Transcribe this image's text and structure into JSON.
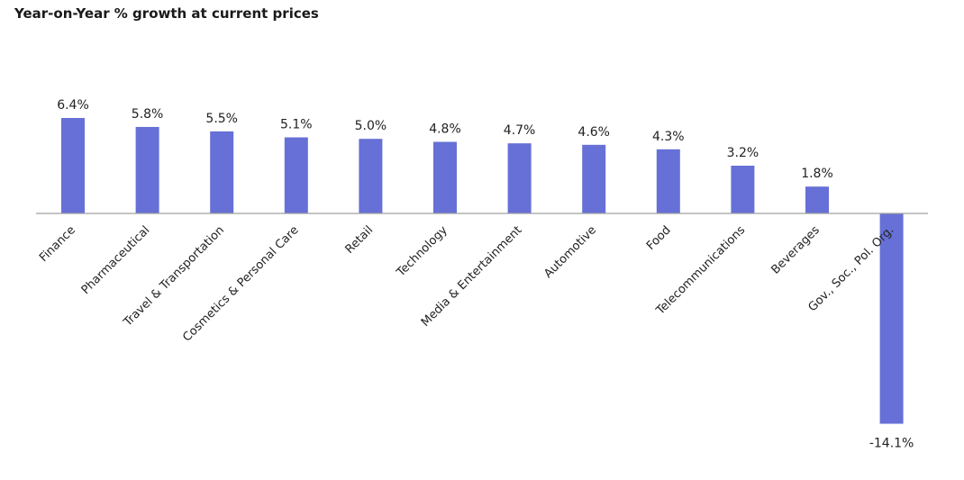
{
  "chart_data": {
    "type": "bar",
    "title": "Year-on-Year % growth at current prices",
    "xlabel": "",
    "ylabel": "",
    "categories": [
      "Finance",
      "Pharmaceutical",
      "Travel & Transportation",
      "Cosmetics & Personal Care",
      "Retail",
      "Technology",
      "Media & Entertainment",
      "Automotive",
      "Food",
      "Telecommunications",
      "Beverages",
      "Gov., Soc., Pol. Org."
    ],
    "values": [
      6.4,
      5.8,
      5.5,
      5.1,
      5.0,
      4.8,
      4.7,
      4.6,
      4.3,
      3.2,
      1.8,
      -14.1
    ],
    "value_labels": [
      "6.4%",
      "5.8%",
      "5.5%",
      "5.1%",
      "5.0%",
      "4.8%",
      "4.7%",
      "4.6%",
      "4.3%",
      "3.2%",
      "1.8%",
      "-14.1%"
    ],
    "ylim": [
      -14.1,
      6.4
    ],
    "grid": false,
    "legend": "none",
    "bar_color": "#6670d6",
    "axis_color": "#a0a0a0"
  }
}
